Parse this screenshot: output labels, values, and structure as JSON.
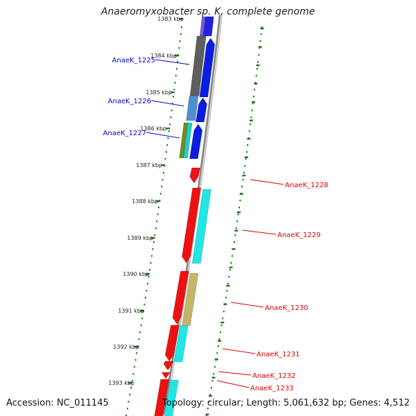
{
  "title": "Anaeromyxobacter sp. K, complete genome",
  "footer": {
    "accession": "Accession: NC_011145",
    "info": "Topology: circular; Length: 5,061,632 bp; Genes: 4,512"
  },
  "colors": {
    "forward_label": "#0000cc",
    "reverse_label": "#dd0000",
    "backbone": "#8a8a8a",
    "tick_dots": "#1a7a1a"
  },
  "kbp_ticks": [
    "1383 kbp",
    "1384 kbp",
    "1385 kbp",
    "1386 kbp",
    "1387 kbp",
    "1388 kbp",
    "1389 kbp",
    "1390 kbp",
    "1391 kbp",
    "1392 kbp",
    "1393 kbp"
  ],
  "forward_genes": [
    "AnaeK_1225",
    "AnaeK_1226",
    "AnaeK_1227"
  ],
  "reverse_genes": [
    "AnaeK_1228",
    "AnaeK_1229",
    "AnaeK_1230",
    "AnaeK_1231",
    "AnaeK_1232",
    "AnaeK_1233"
  ]
}
